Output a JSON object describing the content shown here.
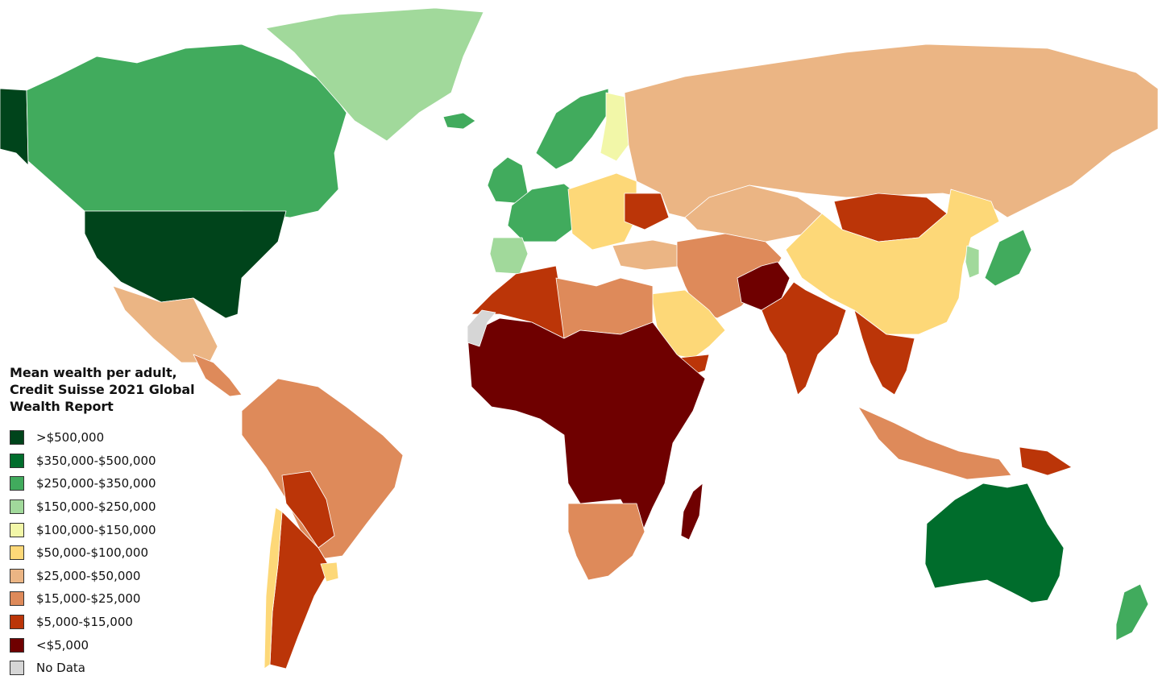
{
  "legend": {
    "title": "Mean wealth per adult,\nCredit Suisse 2021 Global\nWealth Report",
    "items": [
      {
        "label": ">$500,000",
        "color": "#00441b"
      },
      {
        "label": "$350,000-$500,000",
        "color": "#006d2c"
      },
      {
        "label": "$250,000-$350,000",
        "color": "#41ab5d"
      },
      {
        "label": "$150,000-$250,000",
        "color": "#a1d99b"
      },
      {
        "label": "$100,000-$150,000",
        "color": "#f2f7a8"
      },
      {
        "label": "$50,000-$100,000",
        "color": "#fdd878"
      },
      {
        "label": "$25,000-$50,000",
        "color": "#ebb584"
      },
      {
        "label": "$15,000-$25,000",
        "color": "#de8a5a"
      },
      {
        "label": "$5,000-$15,000",
        "color": "#bb3508"
      },
      {
        "label": "<$5,000",
        "color": "#6f0000"
      },
      {
        "label": "No Data",
        "color": "#d6d6d6"
      }
    ]
  },
  "regions": [
    {
      "name": "alaska",
      "class": ">$500,000"
    },
    {
      "name": "canada",
      "class": "$250,000-$350,000"
    },
    {
      "name": "united-states",
      "class": ">$500,000"
    },
    {
      "name": "greenland",
      "class": "$150,000-$250,000"
    },
    {
      "name": "iceland",
      "class": "$250,000-$350,000"
    },
    {
      "name": "mexico",
      "class": "$25,000-$50,000"
    },
    {
      "name": "central-america",
      "class": "$15,000-$25,000"
    },
    {
      "name": "south-america",
      "class": "$15,000-$25,000"
    },
    {
      "name": "bolivia-paraguay",
      "class": "$5,000-$15,000"
    },
    {
      "name": "argentina",
      "class": "$5,000-$15,000"
    },
    {
      "name": "chile",
      "class": "$50,000-$100,000"
    },
    {
      "name": "uruguay",
      "class": "$50,000-$100,000"
    },
    {
      "name": "scandinavia",
      "class": "$250,000-$350,000"
    },
    {
      "name": "finland",
      "class": "$100,000-$150,000"
    },
    {
      "name": "uk-ireland",
      "class": "$250,000-$350,000"
    },
    {
      "name": "france-germany",
      "class": "$250,000-$350,000"
    },
    {
      "name": "iberia",
      "class": "$150,000-$250,000"
    },
    {
      "name": "eastern-europe",
      "class": "$50,000-$100,000"
    },
    {
      "name": "ukraine",
      "class": "$5,000-$15,000"
    },
    {
      "name": "turkey",
      "class": "$25,000-$50,000"
    },
    {
      "name": "russia",
      "class": "$25,000-$50,000"
    },
    {
      "name": "kazakhstan",
      "class": "$25,000-$50,000"
    },
    {
      "name": "mongolia",
      "class": "$5,000-$15,000"
    },
    {
      "name": "china",
      "class": "$50,000-$100,000"
    },
    {
      "name": "japan",
      "class": "$250,000-$350,000"
    },
    {
      "name": "korea",
      "class": "$150,000-$250,000"
    },
    {
      "name": "iran-central-asia",
      "class": "$15,000-$25,000"
    },
    {
      "name": "afghanistan",
      "class": "<$5,000"
    },
    {
      "name": "india-pakistan",
      "class": "$5,000-$15,000"
    },
    {
      "name": "saudi-arabia",
      "class": "$50,000-$100,000"
    },
    {
      "name": "yemen",
      "class": "$5,000-$15,000"
    },
    {
      "name": "southeast-asia",
      "class": "$5,000-$15,000"
    },
    {
      "name": "indonesia",
      "class": "$15,000-$25,000"
    },
    {
      "name": "papua-new-guinea",
      "class": "$5,000-$15,000"
    },
    {
      "name": "australia",
      "class": "$350,000-$500,000"
    },
    {
      "name": "new-zealand",
      "class": "$250,000-$350,000"
    },
    {
      "name": "north-africa",
      "class": "$5,000-$15,000"
    },
    {
      "name": "libya-egypt",
      "class": "$15,000-$25,000"
    },
    {
      "name": "sub-saharan-africa",
      "class": "<$5,000"
    },
    {
      "name": "southern-africa",
      "class": "$15,000-$25,000"
    },
    {
      "name": "madagascar",
      "class": "<$5,000"
    },
    {
      "name": "western-sahara",
      "class": "No Data"
    }
  ]
}
